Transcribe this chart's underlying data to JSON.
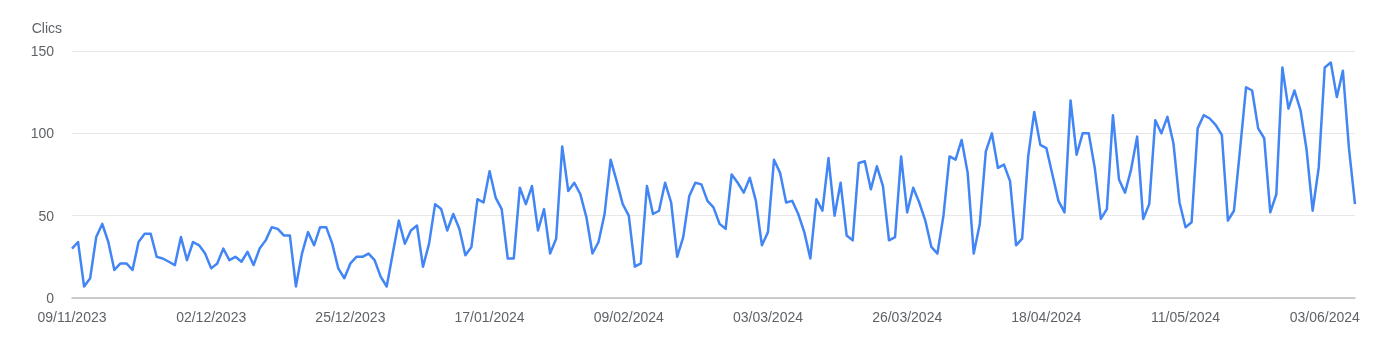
{
  "chart_data": {
    "type": "line",
    "ylabel": "Clics",
    "color": "#4285f4",
    "ylim": [
      0,
      150
    ],
    "yticks": [
      0,
      50,
      100,
      150
    ],
    "grid": "y",
    "categories": [
      "09/11/2023",
      null,
      null,
      null,
      null,
      null,
      null,
      null,
      null,
      null,
      null,
      null,
      null,
      null,
      null,
      null,
      null,
      null,
      null,
      null,
      null,
      null,
      null,
      "02/12/2023",
      null,
      null,
      null,
      null,
      null,
      null,
      null,
      null,
      null,
      null,
      null,
      null,
      null,
      null,
      null,
      null,
      null,
      null,
      null,
      null,
      null,
      null,
      "25/12/2023",
      null,
      null,
      null,
      null,
      null,
      null,
      null,
      null,
      null,
      null,
      null,
      null,
      null,
      null,
      null,
      null,
      null,
      null,
      null,
      null,
      null,
      null,
      "17/01/2024",
      null,
      null,
      null,
      null,
      null,
      null,
      null,
      null,
      null,
      null,
      null,
      null,
      null,
      null,
      null,
      null,
      null,
      null,
      null,
      null,
      null,
      null,
      "09/02/2024",
      null,
      null,
      null,
      null,
      null,
      null,
      null,
      null,
      null,
      null,
      null,
      null,
      null,
      null,
      null,
      null,
      null,
      null,
      null,
      null,
      null,
      null,
      "03/03/2024",
      null,
      null,
      null,
      null,
      null,
      null,
      null,
      null,
      null,
      null,
      null,
      null,
      null,
      null,
      null,
      null,
      null,
      null,
      null,
      null,
      null,
      null,
      "26/03/2024",
      null,
      null,
      null,
      null,
      null,
      null,
      null,
      null,
      null,
      null,
      null,
      null,
      null,
      null,
      null,
      null,
      null,
      null,
      null,
      null,
      null,
      null,
      "18/04/2024",
      null,
      null,
      null,
      null,
      null,
      null,
      null,
      null,
      null,
      null,
      null,
      null,
      null,
      null,
      null,
      null,
      null,
      null,
      null,
      null,
      null,
      null,
      "11/05/2024",
      null,
      null,
      null,
      null,
      null,
      null,
      null,
      null,
      null,
      null,
      null,
      null,
      null,
      null,
      null,
      null,
      null,
      null,
      null,
      null,
      null,
      null,
      "03/06/2024",
      null,
      null,
      null,
      null,
      null
    ],
    "values": [
      30,
      34,
      7,
      12,
      37,
      45,
      34,
      17,
      21,
      21,
      17,
      34,
      39,
      39,
      25,
      24,
      22,
      20,
      37,
      23,
      34,
      32,
      27,
      18,
      21,
      30,
      23,
      25,
      22,
      28,
      20,
      30,
      35,
      43,
      42,
      38,
      38,
      7,
      27,
      40,
      32,
      43,
      43,
      33,
      18,
      12,
      21,
      25,
      25,
      27,
      23,
      13,
      7,
      27,
      47,
      33,
      41,
      44,
      19,
      33,
      57,
      54,
      41,
      51,
      42,
      26,
      31,
      60,
      58,
      77,
      61,
      54,
      24,
      24,
      67,
      57,
      68,
      41,
      54,
      27,
      36,
      92,
      65,
      70,
      63,
      49,
      27,
      34,
      51,
      84,
      71,
      57,
      50,
      19,
      21,
      68,
      51,
      53,
      70,
      58,
      25,
      37,
      62,
      70,
      69,
      59,
      55,
      45,
      42,
      75,
      70,
      64,
      73,
      59,
      32,
      40,
      84,
      76,
      58,
      59,
      51,
      40,
      24,
      60,
      53,
      85,
      50,
      70,
      38,
      35,
      82,
      83,
      66,
      80,
      68,
      35,
      37,
      86,
      52,
      67,
      58,
      47,
      31,
      27,
      50,
      86,
      84,
      96,
      76,
      27,
      45,
      89,
      100,
      79,
      81,
      71,
      32,
      36,
      86,
      113,
      93,
      91,
      75,
      59,
      52,
      120,
      87,
      100,
      100,
      79,
      48,
      54,
      111,
      72,
      64,
      78,
      98,
      48,
      57,
      108,
      100,
      110,
      94,
      58,
      43,
      46,
      103,
      111,
      109,
      105,
      99,
      47,
      53,
      90,
      128,
      126,
      103,
      97,
      52,
      63,
      140,
      115,
      126,
      114,
      90,
      53,
      79,
      140,
      143,
      122,
      138,
      91,
      57
    ]
  }
}
